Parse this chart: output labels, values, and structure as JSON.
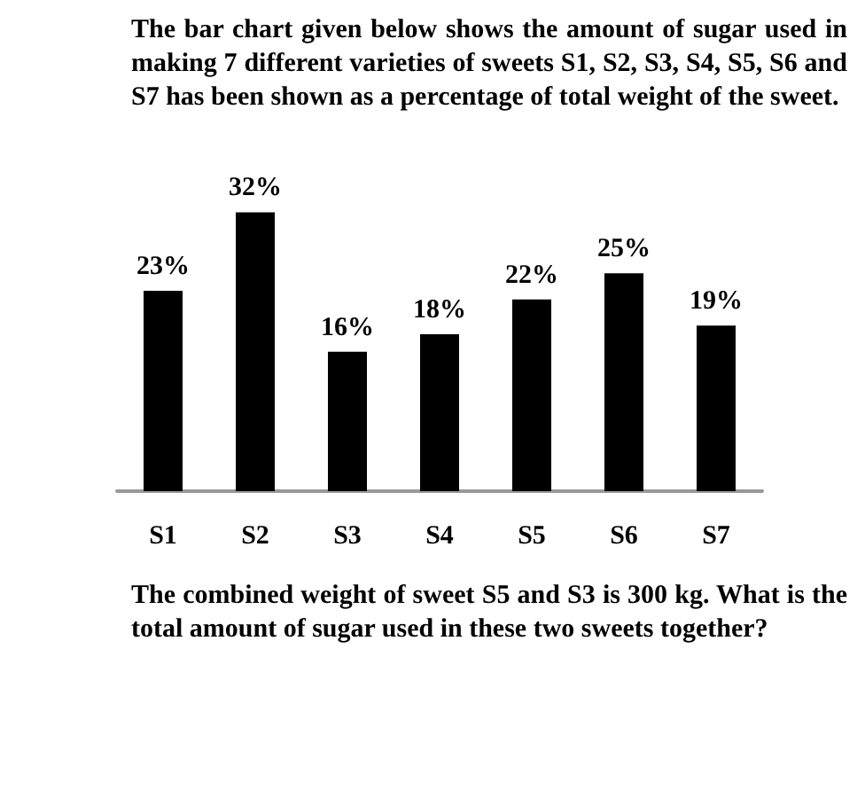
{
  "chart_data": {
    "type": "bar",
    "title": "The bar chart given below shows the amount of sugar used in making 7 different varieties of sweets S1, S2, S3, S4, S5, S6 and S7 has been shown as a percentage of total weight of the sweet.",
    "categories": [
      "S1",
      "S2",
      "S3",
      "S4",
      "S5",
      "S6",
      "S7"
    ],
    "values": [
      23,
      32,
      16,
      18,
      22,
      25,
      19
    ],
    "value_labels": [
      "23%",
      "32%",
      "16%",
      "18%",
      "22%",
      "25%",
      "19%"
    ],
    "color": "#000000",
    "annotations": [
      "The combined weight of sweet S5 and S3 is 300 kg. What is the total amount of sugar used in these two sweets together?"
    ]
  }
}
